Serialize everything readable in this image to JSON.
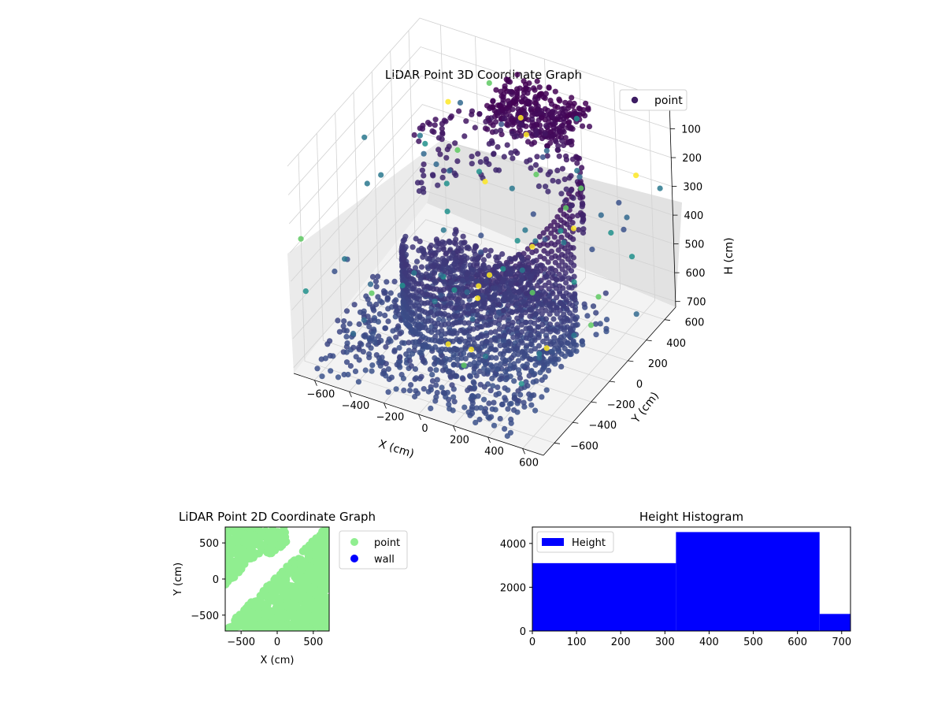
{
  "chart_data": [
    {
      "type": "scatter",
      "projection": "3d",
      "title": "LiDAR Point 3D Coordinate Graph",
      "xlabel": "X (cm)",
      "ylabel": "Y (cm)",
      "zlabel": "H (cm)",
      "xlim": [
        -720,
        720
      ],
      "ylim": [
        -720,
        720
      ],
      "zlim": [
        0,
        720
      ],
      "z_inverted": true,
      "xticks": [
        -600,
        -400,
        -200,
        0,
        200,
        400,
        600
      ],
      "xtick_labels": [
        "−600",
        "−400",
        "−200",
        "0",
        "200",
        "400",
        "600"
      ],
      "yticks": [
        -600,
        -400,
        -200,
        0,
        200,
        400,
        600
      ],
      "ytick_labels": [
        "−600",
        "−400",
        "−200",
        "0",
        "200",
        "400",
        "600"
      ],
      "zticks": [
        0,
        100,
        200,
        300,
        400,
        500,
        600,
        700
      ],
      "ztick_labels": [
        "0",
        "100",
        "200",
        "300",
        "400",
        "500",
        "600",
        "700"
      ],
      "grid": true,
      "colormap": "viridis",
      "legend": {
        "position": "upper-right",
        "entries": [
          {
            "label": "point",
            "color": "#3d1d63"
          }
        ]
      },
      "series": [
        {
          "name": "point",
          "point_groups": [
            {
              "shape": "curved wall arc",
              "x_range": [
                -560,
                520
              ],
              "y_range": [
                -720,
                480
              ],
              "h_range": [
                120,
                680
              ]
            },
            {
              "shape": "roof cluster",
              "x_range": [
                -120,
                360
              ],
              "y_range": [
                240,
                560
              ],
              "h_range": [
                0,
                120
              ]
            },
            {
              "shape": "floor band",
              "x_range": [
                -620,
                500
              ],
              "y_range": [
                -700,
                420
              ],
              "h_range": [
                580,
                720
              ]
            },
            {
              "shape": "scattered outliers",
              "x_range": [
                -720,
                720
              ],
              "y_range": [
                -720,
                720
              ],
              "h_range": [
                100,
                720
              ]
            }
          ]
        }
      ]
    },
    {
      "type": "scatter",
      "title": "LiDAR Point 2D Coordinate Graph",
      "xlabel": "X (cm)",
      "ylabel": "Y (cm)",
      "xlim": [
        -720,
        720
      ],
      "ylim": [
        -720,
        720
      ],
      "xticks": [
        -500,
        0,
        500
      ],
      "xtick_labels": [
        "−500",
        "0",
        "500"
      ],
      "yticks": [
        -500,
        0,
        500
      ],
      "ytick_labels": [
        "−500",
        "0",
        "500"
      ],
      "legend": {
        "position": "outside-right",
        "entries": [
          {
            "label": "point",
            "color": "#90ee90"
          },
          {
            "label": "wall",
            "color": "#0000ff"
          }
        ]
      },
      "series": [
        {
          "name": "point",
          "color": "#90ee90",
          "region": "lower-right filled area and upper-left filled area, empty bands along the upper-right diagonal"
        },
        {
          "name": "wall",
          "color": "#0000ff",
          "values": []
        }
      ]
    },
    {
      "type": "bar",
      "subtype": "histogram",
      "title": "Height Histogram",
      "xlim": [
        0,
        720
      ],
      "ylim": [
        0,
        4750
      ],
      "xticks": [
        0,
        100,
        200,
        300,
        400,
        500,
        600,
        700
      ],
      "xtick_labels": [
        "0",
        "100",
        "200",
        "300",
        "400",
        "500",
        "600",
        "700"
      ],
      "yticks": [
        0,
        2000,
        4000
      ],
      "ytick_labels": [
        "0",
        "2000",
        "4000"
      ],
      "legend": {
        "position": "upper-left",
        "entries": [
          {
            "label": "Height",
            "color": "#0000ff"
          }
        ]
      },
      "series": [
        {
          "name": "Height",
          "color": "#0000ff",
          "bin_edges": [
            0,
            325,
            650,
            720
          ],
          "values": [
            3100,
            4520,
            780
          ]
        }
      ]
    }
  ]
}
